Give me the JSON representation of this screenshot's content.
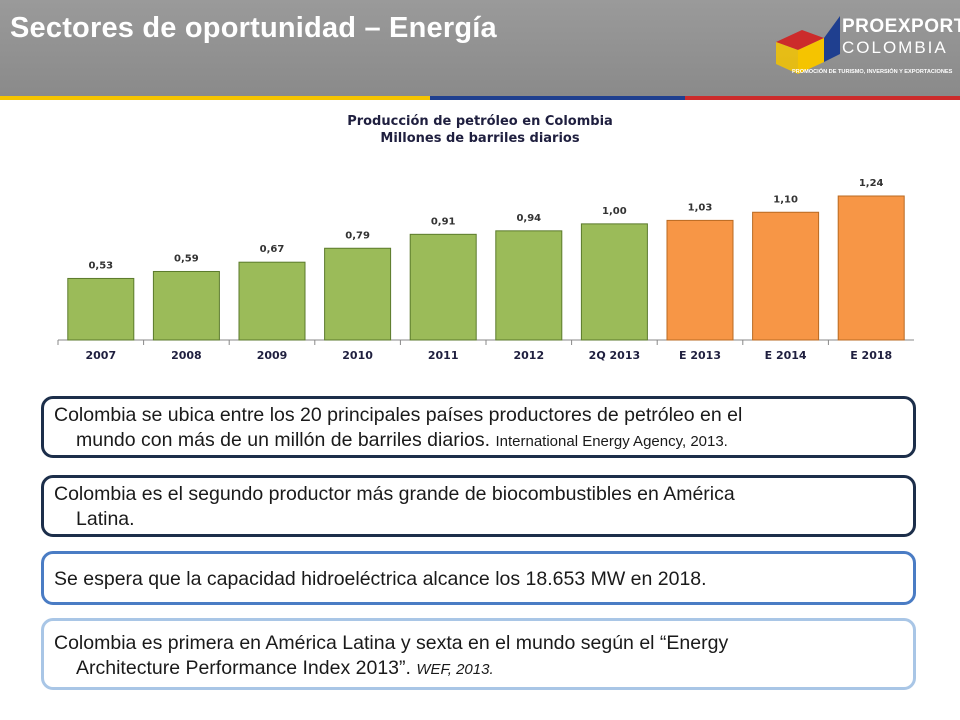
{
  "slide": {
    "title": "Sectores de oportunidad – Energía",
    "stripe_colors": [
      "#f5c400",
      "#1f3f8f",
      "#cc2b2b"
    ]
  },
  "logo": {
    "name": "PROEXPORT",
    "sub": "COLOMBIA",
    "tagline": "PROMOCIÓN DE TURISMO, INVERSIÓN Y EXPORTACIONES"
  },
  "chart_data": {
    "type": "bar",
    "title": "Producción de petróleo en Colombia",
    "subtitle": "Millones de barriles diarios",
    "categories": [
      "2007",
      "2008",
      "2009",
      "2010",
      "2011",
      "2012",
      "2Q 2013",
      "E 2013",
      "E 2014",
      "E 2018"
    ],
    "values": [
      0.53,
      0.59,
      0.67,
      0.79,
      0.91,
      0.94,
      1.0,
      1.03,
      1.1,
      1.24
    ],
    "value_labels": [
      "0,53",
      "0,59",
      "0,67",
      "0,79",
      "0,91",
      "0,94",
      "1,00",
      "1,03",
      "1,10",
      "1,24"
    ],
    "bar_colors": [
      "#9bbb59",
      "#9bbb59",
      "#9bbb59",
      "#9bbb59",
      "#9bbb59",
      "#9bbb59",
      "#9bbb59",
      "#f79646",
      "#f79646",
      "#f79646"
    ],
    "ylim": [
      0,
      1.24
    ],
    "grid": false,
    "legend": "none"
  },
  "boxes": {
    "b1": {
      "line1": "Colombia se ubica entre los 20 principales países productores de petróleo en el",
      "line2": "mundo con más de un millón de barriles diarios.",
      "source": "International Energy Agency, 2013."
    },
    "b2": {
      "line1": "Colombia es el segundo productor más grande de biocombustibles en América",
      "line2": "Latina."
    },
    "b3": {
      "text": "Se espera que la capacidad hidroeléctrica alcance los 18.653 MW en 2018."
    },
    "b4": {
      "line1": "Colombia es primera en América Latina y sexta en el mundo según el “Energy",
      "line2": "Architecture Performance Index 2013”.",
      "source": "WEF, 2013."
    }
  }
}
